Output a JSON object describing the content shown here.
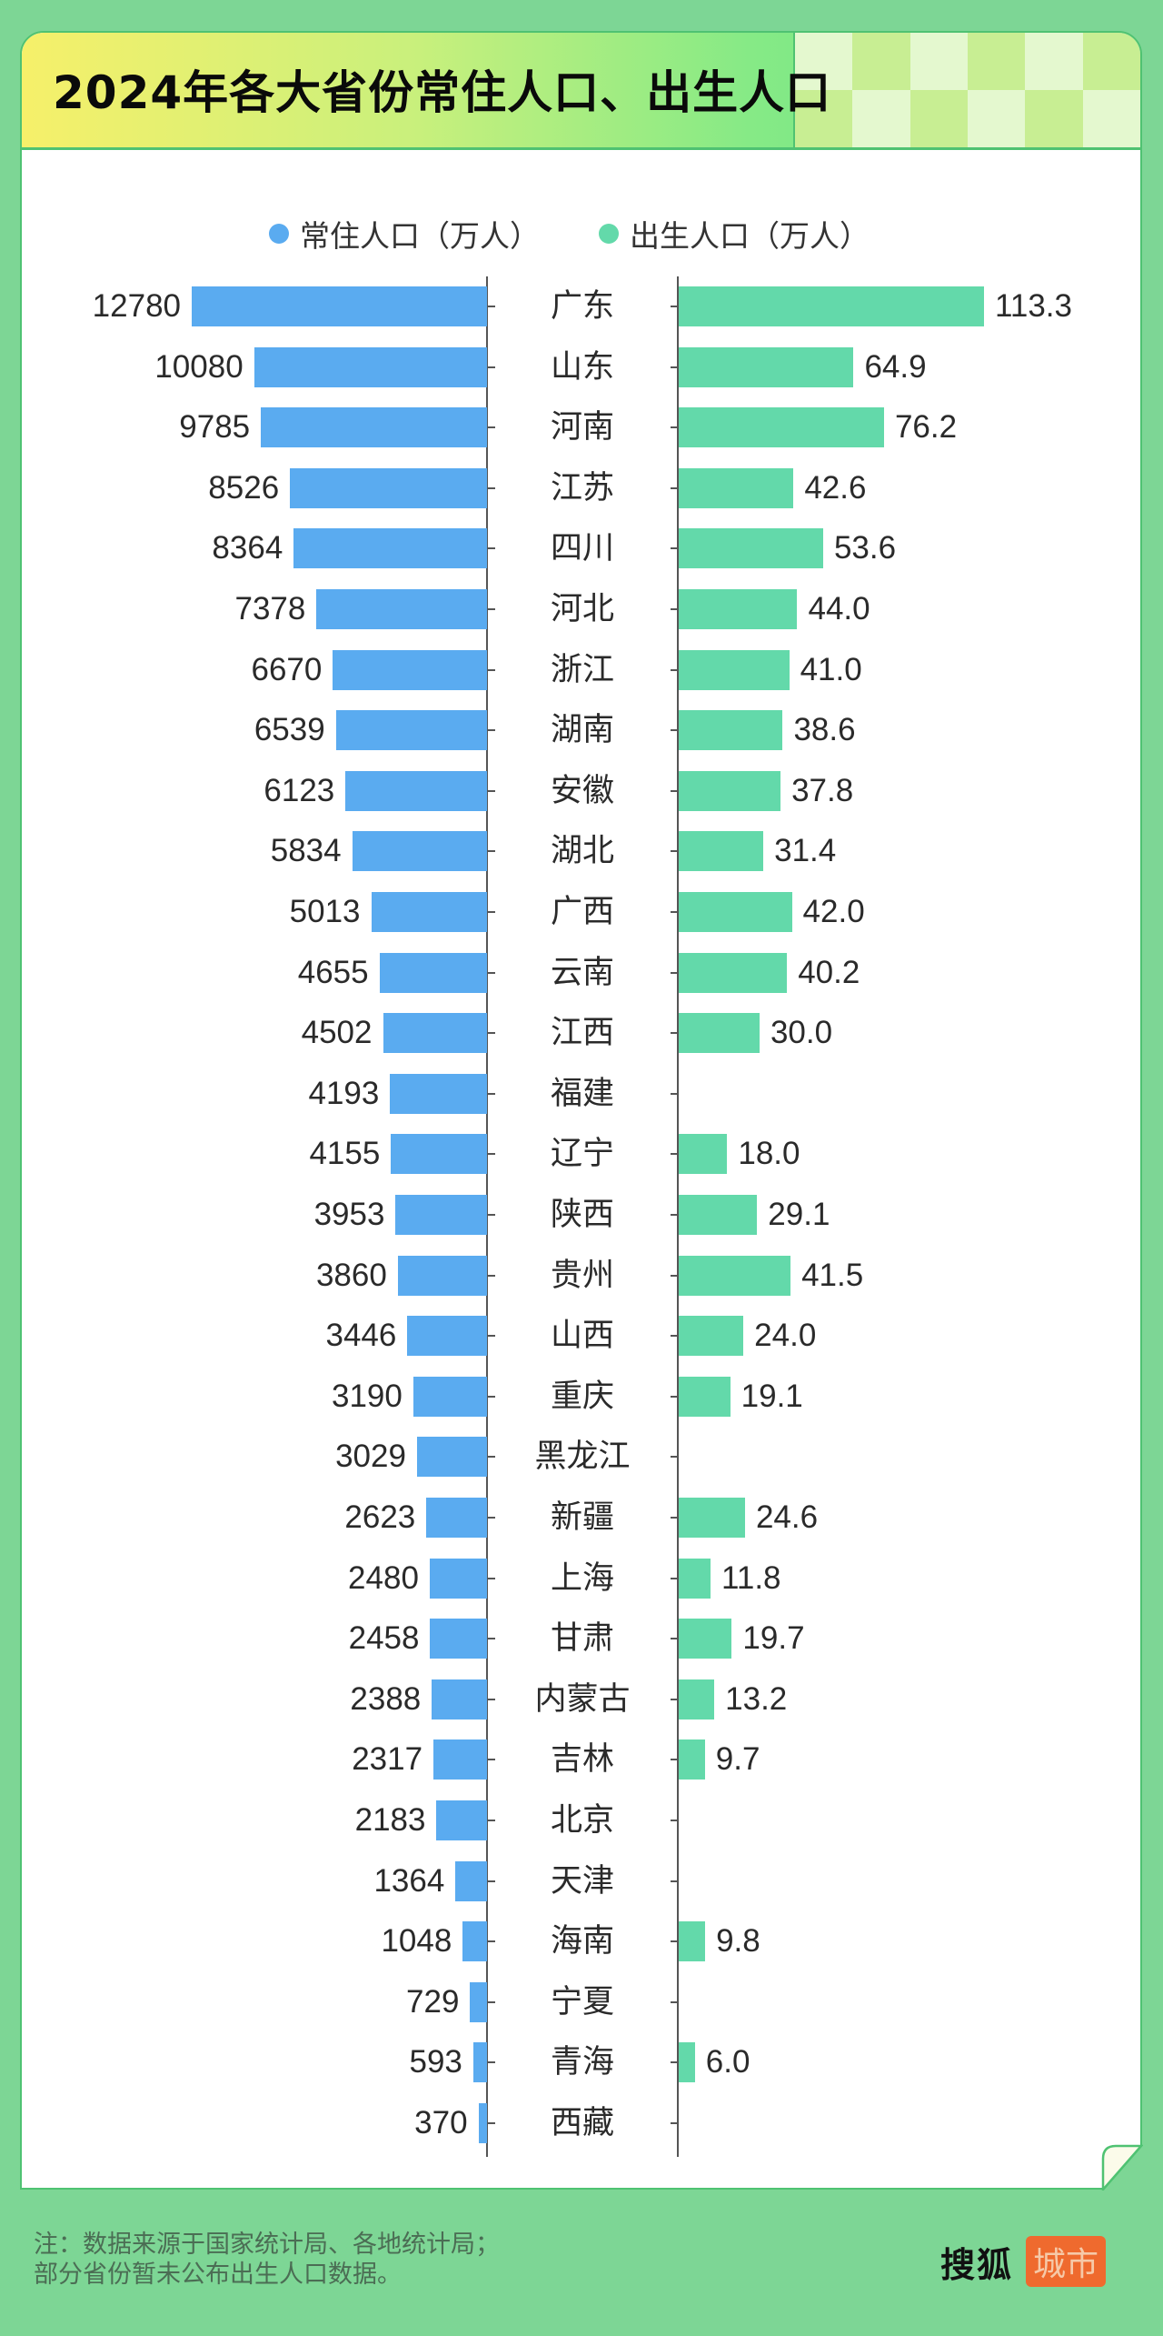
{
  "title": "2024年各大省份常住人口、出生人口",
  "legend": [
    {
      "label": "常住人口（万人）",
      "color": "#5aabf0"
    },
    {
      "label": "出生人口（万人）",
      "color": "#63d9aa"
    }
  ],
  "footer": {
    "note_line1": "注：数据来源于国家统计局、各地统计局；",
    "note_line2": "部分省份暂未公布出生人口数据。",
    "logo_main": "搜狐",
    "logo_tag": "城市"
  },
  "chart_data": {
    "type": "bar",
    "orientation": "horizontal-butterfly",
    "title": "2024年各大省份常住人口、出生人口",
    "legend_position": "top",
    "grid": false,
    "categories": [
      "广东",
      "山东",
      "河南",
      "江苏",
      "四川",
      "河北",
      "浙江",
      "湖南",
      "安徽",
      "湖北",
      "广西",
      "云南",
      "江西",
      "福建",
      "辽宁",
      "陕西",
      "贵州",
      "山西",
      "重庆",
      "黑龙江",
      "新疆",
      "上海",
      "甘肃",
      "内蒙古",
      "吉林",
      "北京",
      "天津",
      "海南",
      "宁夏",
      "青海",
      "西藏"
    ],
    "series": [
      {
        "name": "常住人口（万人）",
        "color": "#5aabf0",
        "side": "left",
        "values": [
          12780,
          10080,
          9785,
          8526,
          8364,
          7378,
          6670,
          6539,
          6123,
          5834,
          5013,
          4655,
          4502,
          4193,
          4155,
          3953,
          3860,
          3446,
          3190,
          3029,
          2623,
          2480,
          2458,
          2388,
          2317,
          2183,
          1364,
          1048,
          729,
          593,
          370
        ]
      },
      {
        "name": "出生人口（万人）",
        "color": "#63d9aa",
        "side": "right",
        "values": [
          "113.3",
          "64.9",
          "76.2",
          "42.6",
          "53.6",
          "44.0",
          "41.0",
          "38.6",
          "37.8",
          "31.4",
          "42.0",
          "40.2",
          "30.0",
          null,
          "18.0",
          "29.1",
          "41.5",
          "24.0",
          "19.1",
          null,
          "24.6",
          "11.8",
          "19.7",
          "13.2",
          "9.7",
          null,
          null,
          "9.8",
          null,
          "6.0",
          null
        ]
      }
    ]
  }
}
